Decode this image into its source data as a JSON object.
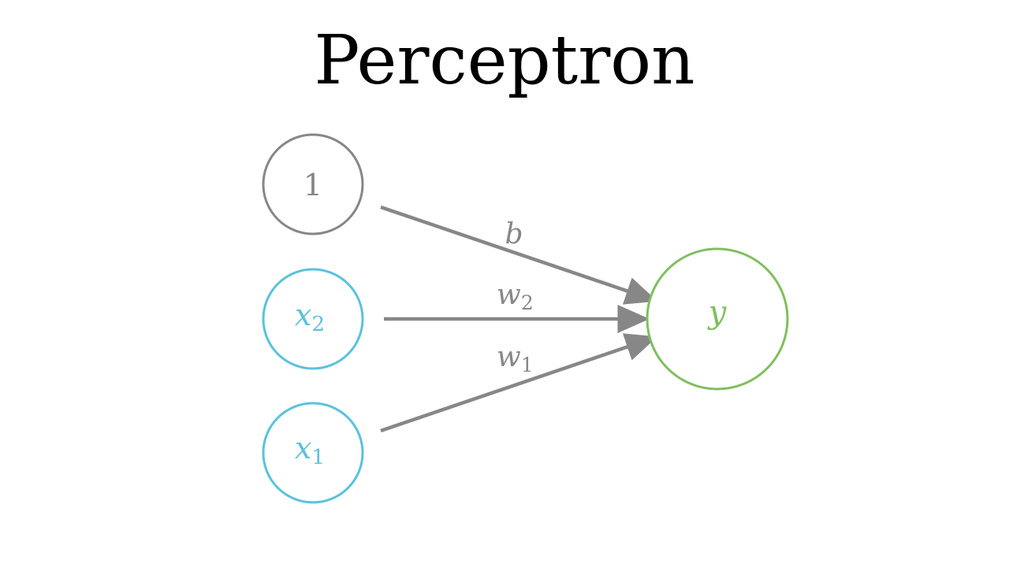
{
  "title": "Perceptron",
  "colors": {
    "bias": "#878787",
    "input": "#5bc2dc",
    "output": "#80bf5f",
    "edge": "#878787"
  },
  "nodes": {
    "bias": {
      "label": "1"
    },
    "x2": {
      "base": "x",
      "sub": "2"
    },
    "x1": {
      "base": "x",
      "sub": "1"
    },
    "y": {
      "label": "y"
    }
  },
  "edges": {
    "b": {
      "label": "b"
    },
    "w2": {
      "base": "w",
      "sub": "2"
    },
    "w1": {
      "base": "w",
      "sub": "1"
    }
  }
}
